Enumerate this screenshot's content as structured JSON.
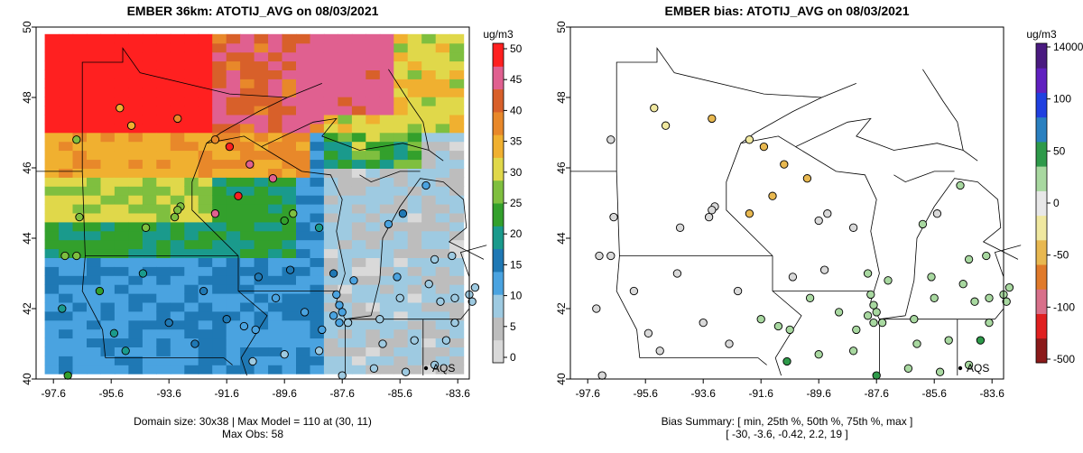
{
  "left_map": {
    "title": "EMBER 36km: ATOTIJ_AVG on 08/03/2021",
    "footer_line1": "Domain size: 30x38 | Max Model = 110 at (30, 11)",
    "footer_line2": "Max Obs: 58",
    "unit_label": "ug/m3",
    "legend_ticks": [
      "0",
      "5",
      "10",
      "15",
      "20",
      "25",
      "30",
      "35",
      "40",
      "45",
      "50"
    ],
    "legend_colors": [
      "#d9d9d9",
      "#bdbdbd",
      "#9ecae1",
      "#4aa3e0",
      "#1f78b4",
      "#1a9a8c",
      "#33a02c",
      "#7fbf3f",
      "#e0d84a",
      "#f0b030",
      "#e8882a",
      "#d8602a",
      "#e06090",
      "#ff2020"
    ],
    "aqs_label": "AQS"
  },
  "right_map": {
    "title": "EMBER bias: ATOTIJ_AVG on 08/03/2021",
    "footer_line1": "Bias Summary: [ min, 25th %, 50th %, 75th %, max ]",
    "footer_line2": "[ -30,   -3.6,   -0.42,   2.2,   19 ]",
    "unit_label": "ug/m3",
    "legend_ticks": [
      "14000",
      "100",
      "50",
      "0",
      "-50",
      "-100",
      "-500"
    ],
    "legend_colors": [
      "#8b1a1a",
      "#e02020",
      "#d8708a",
      "#e07a2a",
      "#e8b850",
      "#f0e8a0",
      "#e8e8e8",
      "#a8d8a0",
      "#2e9a4a",
      "#2a80c0",
      "#2040e0",
      "#6020c0",
      "#4a1a80"
    ],
    "aqs_label": "AQS"
  },
  "axes": {
    "x_ticks": [
      "-97.6",
      "-95.6",
      "-93.6",
      "-91.6",
      "-89.6",
      "-87.6",
      "-85.6",
      "-83.6"
    ],
    "y_ticks": [
      "40",
      "42",
      "44",
      "46",
      "48",
      "50"
    ],
    "xlim": [
      -98.2,
      -83.2
    ],
    "ylim": [
      40,
      50
    ]
  }
}
